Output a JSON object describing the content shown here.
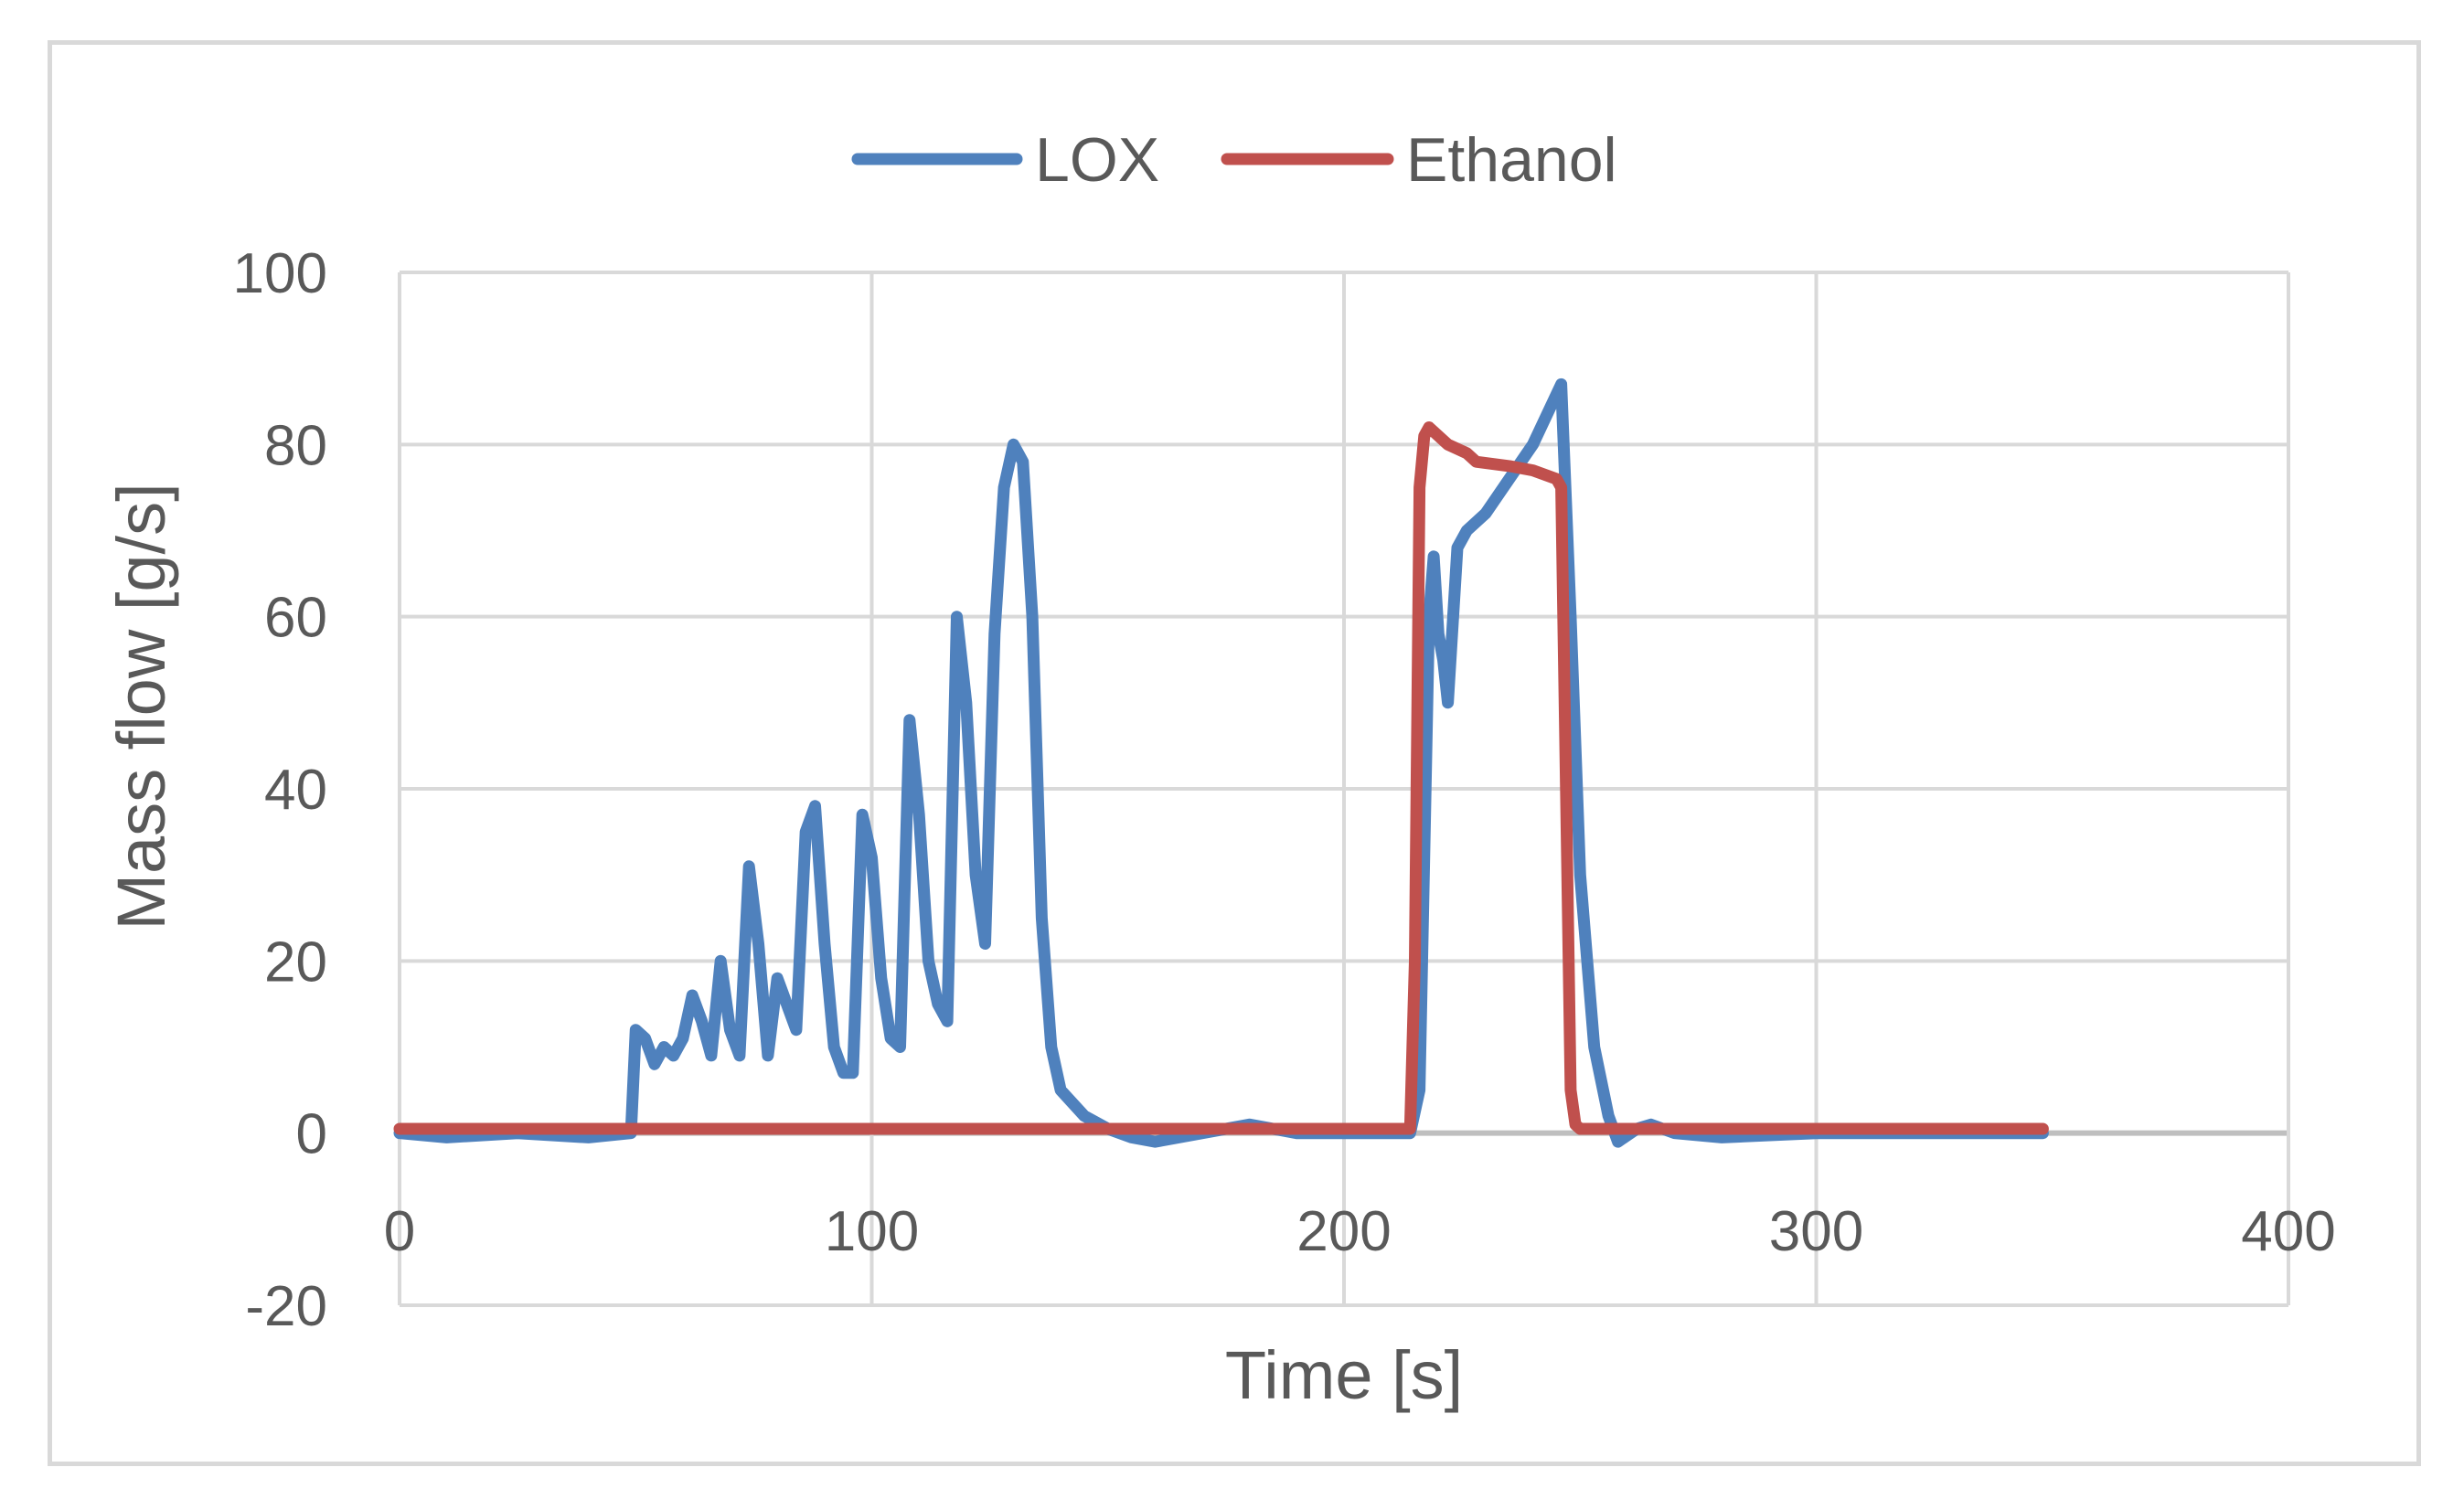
{
  "chart_data": {
    "type": "line",
    "title": "",
    "xlabel": "Time [s]",
    "ylabel": "Mass flow [g/s]",
    "xlim": [
      0,
      400
    ],
    "ylim": [
      -20,
      100
    ],
    "xticks": [
      0,
      100,
      200,
      300,
      400
    ],
    "yticks": [
      -20,
      0,
      20,
      40,
      60,
      80,
      100
    ],
    "xtick_labels": [
      "0",
      "100",
      "200",
      "300",
      "400"
    ],
    "ytick_labels": [
      "-20",
      "0",
      "20",
      "40",
      "60",
      "80",
      "100"
    ],
    "grid": true,
    "legend_position": "top",
    "series": [
      {
        "name": "LOX",
        "color": "#4f81bd",
        "points": [
          [
            0,
            0
          ],
          [
            10,
            -0.5
          ],
          [
            25,
            0
          ],
          [
            40,
            -0.5
          ],
          [
            49,
            0
          ],
          [
            50,
            12
          ],
          [
            52,
            11
          ],
          [
            54,
            8
          ],
          [
            56,
            10
          ],
          [
            58,
            9
          ],
          [
            60,
            11
          ],
          [
            62,
            16
          ],
          [
            64,
            13
          ],
          [
            66,
            9
          ],
          [
            68,
            20
          ],
          [
            70,
            12
          ],
          [
            72,
            9
          ],
          [
            74,
            31
          ],
          [
            76,
            22
          ],
          [
            78,
            9
          ],
          [
            80,
            18
          ],
          [
            82,
            15
          ],
          [
            84,
            12
          ],
          [
            86,
            35
          ],
          [
            88,
            38
          ],
          [
            90,
            22
          ],
          [
            92,
            10
          ],
          [
            94,
            7
          ],
          [
            96,
            7
          ],
          [
            98,
            37
          ],
          [
            100,
            32
          ],
          [
            102,
            18
          ],
          [
            104,
            11
          ],
          [
            106,
            10
          ],
          [
            108,
            48
          ],
          [
            110,
            37
          ],
          [
            112,
            20
          ],
          [
            114,
            15
          ],
          [
            116,
            13
          ],
          [
            118,
            60
          ],
          [
            120,
            50
          ],
          [
            122,
            30
          ],
          [
            124,
            22
          ],
          [
            126,
            58
          ],
          [
            128,
            75
          ],
          [
            130,
            80
          ],
          [
            132,
            78
          ],
          [
            134,
            60
          ],
          [
            136,
            25
          ],
          [
            138,
            10
          ],
          [
            140,
            5
          ],
          [
            145,
            2
          ],
          [
            150,
            0.5
          ],
          [
            155,
            -0.5
          ],
          [
            160,
            -1
          ],
          [
            170,
            0
          ],
          [
            180,
            1
          ],
          [
            190,
            0
          ],
          [
            200,
            0
          ],
          [
            210,
            0
          ],
          [
            214,
            0
          ],
          [
            216,
            5
          ],
          [
            218,
            60
          ],
          [
            219,
            67
          ],
          [
            220,
            58
          ],
          [
            221,
            55
          ],
          [
            222,
            50
          ],
          [
            224,
            68
          ],
          [
            226,
            70
          ],
          [
            230,
            72
          ],
          [
            240,
            80
          ],
          [
            246,
            87
          ],
          [
            248,
            60
          ],
          [
            250,
            30
          ],
          [
            253,
            10
          ],
          [
            256,
            2
          ],
          [
            258,
            -1
          ],
          [
            262,
            0.5
          ],
          [
            265,
            1
          ],
          [
            270,
            0
          ],
          [
            280,
            -0.5
          ],
          [
            300,
            0
          ],
          [
            320,
            0
          ],
          [
            348,
            0
          ]
        ]
      },
      {
        "name": "Ethanol",
        "color": "#c0504d",
        "points": [
          [
            0,
            0.5
          ],
          [
            100,
            0.5
          ],
          [
            150,
            0.5
          ],
          [
            214,
            0.5
          ],
          [
            215,
            20
          ],
          [
            216,
            75
          ],
          [
            217,
            81
          ],
          [
            218,
            82
          ],
          [
            222,
            80
          ],
          [
            226,
            79
          ],
          [
            228,
            78
          ],
          [
            235,
            77.5
          ],
          [
            240,
            77
          ],
          [
            245,
            76
          ],
          [
            246,
            75
          ],
          [
            247,
            40
          ],
          [
            248,
            5
          ],
          [
            249,
            1
          ],
          [
            250,
            0.5
          ],
          [
            300,
            0.5
          ],
          [
            348,
            0.5
          ]
        ]
      }
    ]
  }
}
